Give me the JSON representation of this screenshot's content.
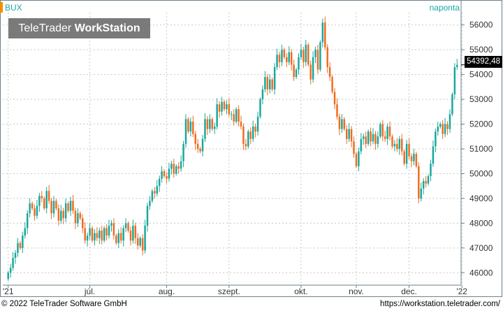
{
  "header": {
    "symbol": "BUX",
    "period": "naponta",
    "accent_color": "#f29100"
  },
  "logo": {
    "light": "TeleTrader",
    "bold": "WorkStation"
  },
  "current_price_label": "54392,48",
  "footer": {
    "copyright": "© 2022 TeleTrader Software GmbH",
    "url": "https://workstation.teletrader.com/"
  },
  "chart_data": {
    "type": "candlestick",
    "ylim": [
      45500,
      56500
    ],
    "y_ticks": [
      "46000",
      "47000",
      "48000",
      "49000",
      "50000",
      "51000",
      "52000",
      "53000",
      "54000",
      "55000",
      "56000"
    ],
    "x_ticks": [
      "'21",
      "júl.",
      "aug.",
      "szept.",
      "okt.",
      "nov.",
      "dec.",
      "'22"
    ],
    "grid": true,
    "up_color": "#19a79b",
    "down_color": "#ef6c1f",
    "closes": [
      46000,
      46200,
      46600,
      46800,
      47200,
      47000,
      47500,
      47800,
      48400,
      48800,
      48600,
      48300,
      48700,
      49100,
      49000,
      48600,
      49300,
      48900,
      48400,
      48900,
      48600,
      48100,
      48500,
      48200,
      48800,
      48500,
      48900,
      48500,
      48000,
      48400,
      48200,
      47800,
      47300,
      47500,
      47800,
      47300,
      47600,
      47400,
      47700,
      47300,
      47800,
      47500,
      47900,
      48000,
      47500,
      47200,
      47600,
      47300,
      47800,
      48000,
      47700,
      47300,
      47900,
      47400,
      47100,
      47400,
      46900,
      47900,
      48700,
      48900,
      49300,
      49200,
      49500,
      49800,
      50100,
      49900,
      49800,
      50200,
      50400,
      50000,
      50300,
      50200,
      50500,
      51200,
      52200,
      51700,
      52100,
      51600,
      51200,
      51000,
      50900,
      51400,
      52200,
      51800,
      52200,
      51800,
      51900,
      52800,
      52500,
      52900,
      52600,
      52800,
      52400,
      52400,
      52100,
      52600,
      52100,
      51900,
      51200,
      51100,
      51700,
      51400,
      51900,
      51700,
      52300,
      53000,
      53400,
      53900,
      53400,
      53800,
      53400,
      54300,
      54800,
      54500,
      55000,
      54700,
      54500,
      54900,
      54400,
      53900,
      54200,
      54700,
      55000,
      54500,
      55200,
      54400,
      53800,
      54700,
      55000,
      54200,
      55300,
      56100,
      55100,
      54300,
      53900,
      53300,
      52800,
      52300,
      51800,
      52200,
      51800,
      51400,
      51800,
      51300,
      50800,
      50300,
      50900,
      51400,
      51500,
      51200,
      51700,
      51300,
      51600,
      51200,
      51500,
      52000,
      51500,
      51400,
      51900,
      51500,
      51100,
      51200,
      51000,
      51400,
      50900,
      50400,
      51200,
      50700,
      50500,
      50800,
      50300,
      49000,
      49400,
      49700,
      49600,
      49900,
      50400,
      51100,
      51700,
      51900,
      52000,
      51600,
      52000,
      51800,
      52400,
      53200,
      54300,
      54392.48
    ]
  }
}
